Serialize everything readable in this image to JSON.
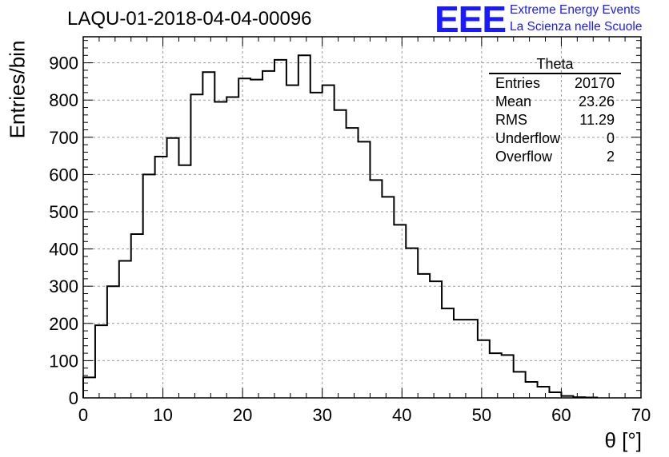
{
  "page": {
    "title": "LAQU-01-2018-04-04-00096",
    "logo": {
      "mark": "EEE",
      "line1": "Extreme Energy Events",
      "line2": "La Scienza nelle Scuole"
    },
    "colors": {
      "logo": "#1a1aff",
      "axis": "#000000",
      "grid": "#9a9a9a",
      "histogram": "#000000"
    }
  },
  "stats_box": {
    "title": "Theta",
    "rows": [
      {
        "label": "Entries",
        "value": "20170"
      },
      {
        "label": "Mean",
        "value": "23.26"
      },
      {
        "label": "RMS",
        "value": "11.29"
      },
      {
        "label": "Underflow",
        "value": "0"
      },
      {
        "label": "Overflow",
        "value": "2"
      }
    ]
  },
  "chart_data": {
    "type": "histogram",
    "title": "LAQU-01-2018-04-04-00096",
    "xlabel": "θ [°]",
    "ylabel": "Entries/bin",
    "xlim": [
      0,
      70
    ],
    "ylim": [
      0,
      970
    ],
    "grid": true,
    "legend_position": "top-right",
    "xticks": [
      0,
      10,
      20,
      30,
      40,
      50,
      60,
      70
    ],
    "yticks": [
      0,
      100,
      200,
      300,
      400,
      500,
      600,
      700,
      800,
      900
    ],
    "bin_width": 1.5,
    "bin_edges_start": 0,
    "values": [
      55,
      195,
      300,
      368,
      440,
      600,
      648,
      698,
      625,
      815,
      875,
      795,
      808,
      858,
      855,
      878,
      908,
      840,
      920,
      820,
      840,
      773,
      725,
      688,
      585,
      540,
      465,
      402,
      333,
      313,
      240,
      210,
      210,
      155,
      120,
      115,
      70,
      43,
      30,
      15,
      5,
      2,
      1
    ]
  }
}
